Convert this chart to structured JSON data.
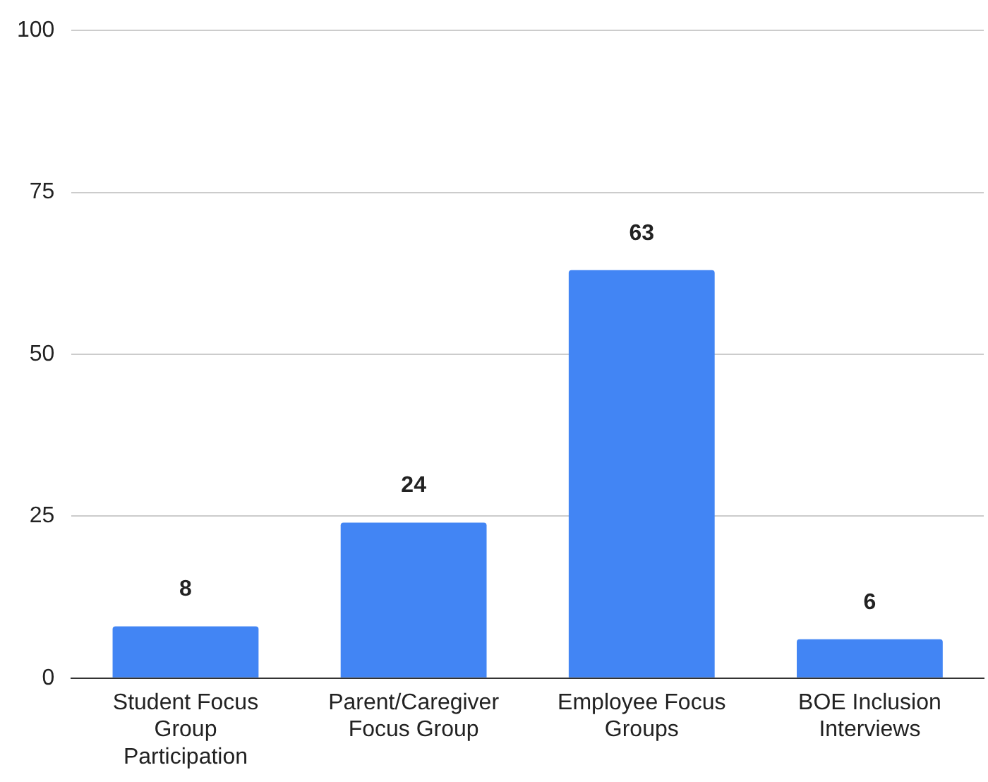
{
  "chart_data": {
    "type": "bar",
    "categories": [
      "Student Focus Group Participation",
      "Parent/Caregiver Focus Group",
      "Employee Focus Groups",
      "BOE Inclusion Interviews"
    ],
    "values": [
      8,
      24,
      63,
      6
    ],
    "color": "#4285f4",
    "ylim": [
      0,
      100
    ],
    "yticks": [
      0,
      25,
      50,
      75,
      100
    ],
    "grid": "y",
    "data_labels": true
  }
}
